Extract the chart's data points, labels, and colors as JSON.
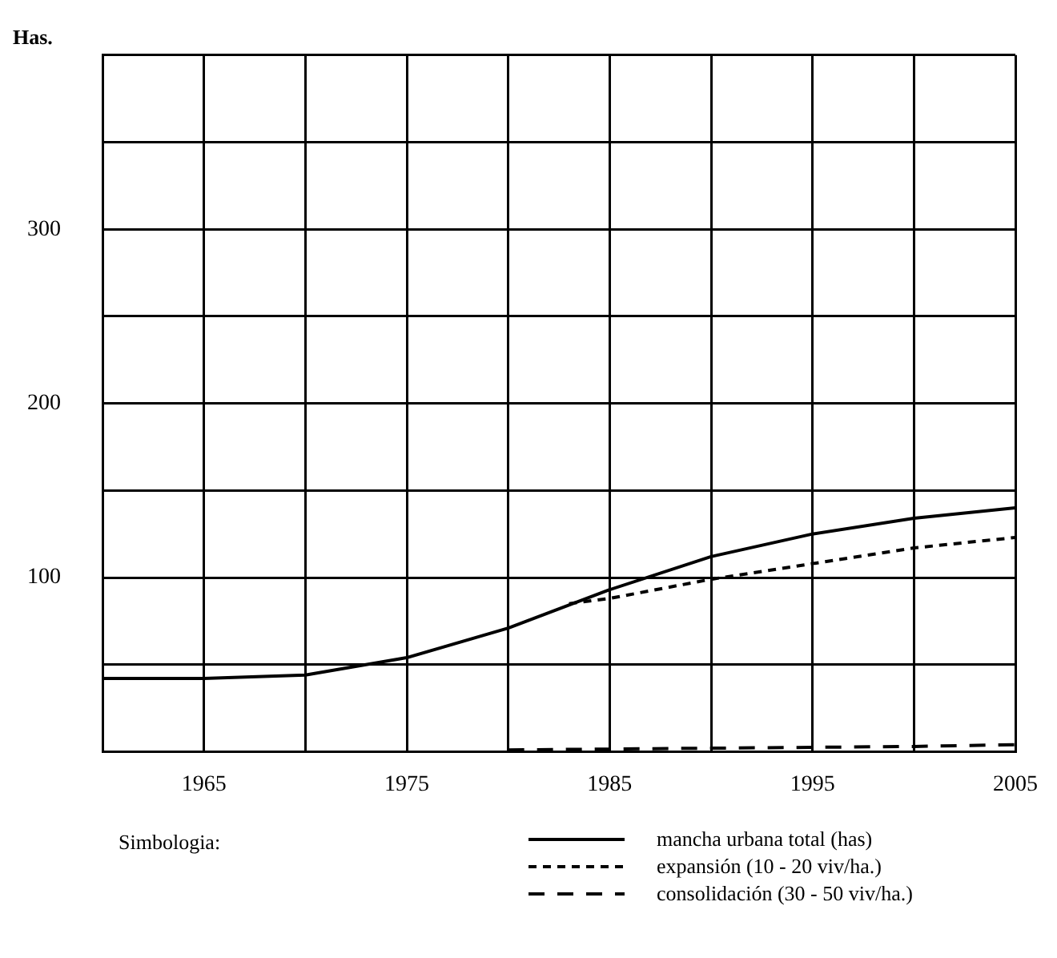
{
  "chart_data": {
    "type": "line",
    "ylabel": "Has.",
    "legend_title": "Simbologia:",
    "xlim": [
      1960,
      2005
    ],
    "xticks": [
      {
        "value": 1960,
        "label": null
      },
      1965,
      {
        "value": 1970,
        "label": null
      },
      1975,
      {
        "value": 1980,
        "label": null
      },
      1985,
      {
        "value": 1990,
        "label": null
      },
      1995,
      {
        "value": 2000,
        "label": null
      },
      2005
    ],
    "ylim": [
      0,
      400
    ],
    "yticks": [
      {
        "value": 0,
        "label": null
      },
      {
        "value": 50,
        "label": null
      },
      100,
      {
        "value": 150,
        "label": null
      },
      200,
      {
        "value": 250,
        "label": null
      },
      300,
      {
        "value": 350,
        "label": null
      },
      {
        "value": 400,
        "label": null
      }
    ],
    "grid": true,
    "legend": "bottom",
    "marker": "none",
    "series": [
      {
        "name": "mancha urbana total  (has)",
        "color": "#000000",
        "line_style": "solid",
        "x": [
          1960,
          1965,
          1970,
          1975,
          1980,
          1985,
          1990,
          1995,
          2000,
          2005
        ],
        "values": [
          42,
          42,
          44,
          54,
          71,
          93,
          112,
          125,
          134,
          140
        ]
      },
      {
        "name": "expansión (10 - 20 viv/ha.)",
        "color": "#000000",
        "line_style": "dashed",
        "x": [
          1983,
          1985,
          1990,
          1995,
          2000,
          2005
        ],
        "values": [
          85,
          88,
          99,
          108,
          117,
          123
        ]
      },
      {
        "name": "consolidación (30 - 50 viv/ha.)",
        "color": "#000000",
        "line_style": "dashed",
        "x": [
          1980,
          1990,
          2000,
          2005
        ],
        "values": [
          1,
          2,
          3,
          4
        ]
      }
    ]
  }
}
